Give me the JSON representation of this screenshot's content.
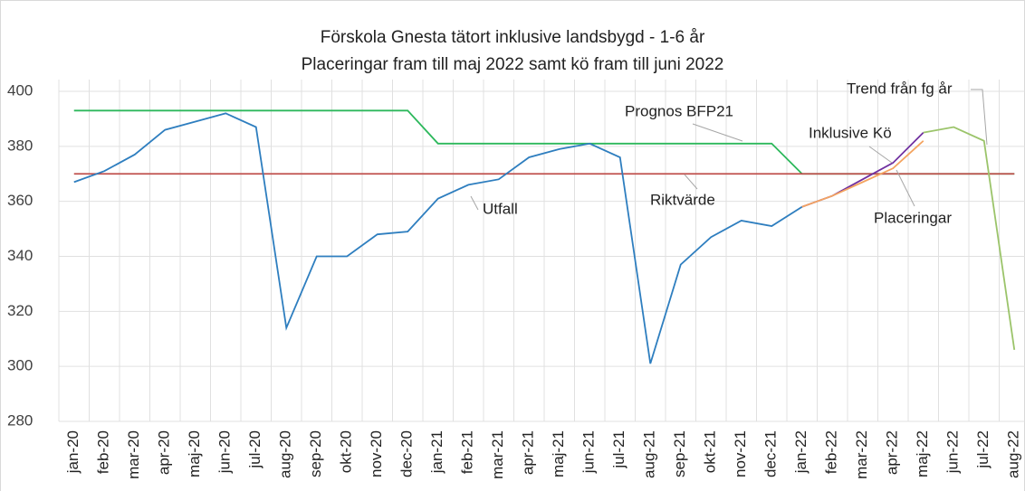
{
  "chart_data": {
    "type": "line",
    "title": "Förskola Gnesta tätort inklusive landsbygd -  1-6 år",
    "subtitle": "Placeringar fram till maj 2022 samt kö fram till juni 2022",
    "categories": [
      "jan-20",
      "feb-20",
      "mar-20",
      "apr-20",
      "maj-20",
      "jun-20",
      "jul-20",
      "aug-20",
      "sep-20",
      "okt-20",
      "nov-20",
      "dec-20",
      "jan-21",
      "feb-21",
      "mar-21",
      "apr-21",
      "maj-21",
      "jun-21",
      "jul-21",
      "aug-21",
      "sep-21",
      "okt-21",
      "nov-21",
      "dec-21",
      "jan-22",
      "feb-22",
      "mar-22",
      "apr-22",
      "maj-22",
      "jun-22",
      "jul-22",
      "aug-22"
    ],
    "series": [
      {
        "name": "Prognos BFP21",
        "color": "#2db85c",
        "values": [
          393,
          393,
          393,
          393,
          393,
          393,
          393,
          393,
          393,
          393,
          393,
          393,
          381,
          381,
          381,
          381,
          381,
          381,
          381,
          381,
          381,
          381,
          381,
          381,
          370,
          370,
          370,
          370,
          370,
          370,
          370,
          370
        ]
      },
      {
        "name": "Riktvärde",
        "color": "#c0504d",
        "values": [
          370,
          370,
          370,
          370,
          370,
          370,
          370,
          370,
          370,
          370,
          370,
          370,
          370,
          370,
          370,
          370,
          370,
          370,
          370,
          370,
          370,
          370,
          370,
          370,
          370,
          370,
          370,
          370,
          370,
          370,
          370,
          370
        ]
      },
      {
        "name": "Utfall",
        "color": "#2e7ebf",
        "values": [
          367,
          371,
          377,
          386,
          389,
          392,
          387,
          314,
          340,
          340,
          348,
          349,
          361,
          366,
          368,
          376,
          379,
          381,
          376,
          301,
          337,
          347,
          353,
          351,
          358,
          null,
          null,
          null,
          null,
          null,
          null,
          null
        ]
      },
      {
        "name": "Inklusive Kö",
        "color": "#7030a0",
        "values": [
          null,
          null,
          null,
          null,
          null,
          null,
          null,
          null,
          null,
          null,
          null,
          null,
          null,
          null,
          null,
          null,
          null,
          null,
          null,
          null,
          null,
          null,
          null,
          null,
          358,
          362,
          368,
          374,
          385,
          null,
          null,
          null
        ]
      },
      {
        "name": "Placeringar",
        "color": "#f4a460",
        "values": [
          null,
          null,
          null,
          null,
          null,
          null,
          null,
          null,
          null,
          null,
          null,
          null,
          null,
          null,
          null,
          null,
          null,
          null,
          null,
          null,
          null,
          null,
          null,
          null,
          358,
          362,
          367,
          372,
          382,
          null,
          null,
          null
        ]
      },
      {
        "name": "Trend från fg år",
        "color": "#9bc46a",
        "values": [
          null,
          null,
          null,
          null,
          null,
          null,
          null,
          null,
          null,
          null,
          null,
          null,
          null,
          null,
          null,
          null,
          null,
          null,
          null,
          null,
          null,
          null,
          null,
          null,
          null,
          null,
          null,
          null,
          385,
          387,
          382,
          306
        ]
      }
    ],
    "ylim": [
      280,
      400
    ],
    "yticks": [
      280,
      300,
      320,
      340,
      360,
      380,
      400
    ],
    "grid": true
  }
}
